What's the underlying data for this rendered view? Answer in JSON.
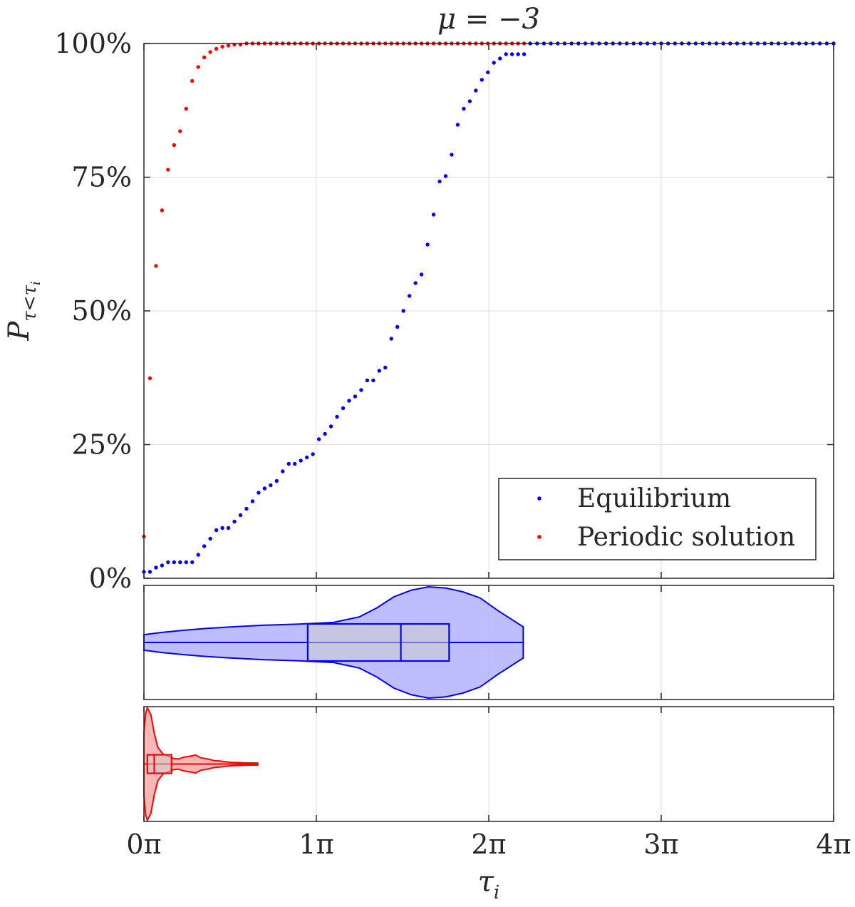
{
  "chart_data": {
    "type": "scatter",
    "title": "μ = −3",
    "xlabel": "τ",
    "xlabel_sub": "i",
    "ylabel": "P",
    "ylabel_sub": "τ<τ",
    "ylabel_sub_sub": "i",
    "x_unit": "π",
    "xlim": [
      0,
      4
    ],
    "x_ticks": [
      0,
      1,
      2,
      3,
      4
    ],
    "x_tick_labels": [
      "0π",
      "1π",
      "2π",
      "3π",
      "4π"
    ],
    "ylim": [
      0,
      100
    ],
    "y_ticks": [
      0,
      25,
      50,
      75,
      100
    ],
    "y_tick_labels": [
      "0%",
      "25%",
      "50%",
      "75%",
      "100%"
    ],
    "grid": true,
    "legend_position": "bottom-right",
    "series": [
      {
        "name": "Equilibrium",
        "color": "#0000ff",
        "x": [
          0,
          0.035,
          0.07,
          0.105,
          0.14,
          0.175,
          0.21,
          0.245,
          0.28,
          0.315,
          0.35,
          0.385,
          0.42,
          0.455,
          0.49,
          0.525,
          0.56,
          0.595,
          0.63,
          0.665,
          0.7,
          0.735,
          0.77,
          0.805,
          0.84,
          0.875,
          0.91,
          0.945,
          0.98,
          1.015,
          1.05,
          1.085,
          1.12,
          1.155,
          1.19,
          1.225,
          1.26,
          1.295,
          1.33,
          1.365,
          1.4,
          1.435,
          1.47,
          1.505,
          1.54,
          1.575,
          1.61,
          1.645,
          1.68,
          1.715,
          1.75,
          1.785,
          1.82,
          1.855,
          1.89,
          1.925,
          1.96,
          1.995,
          2.03,
          2.065,
          2.1,
          2.135,
          2.17,
          2.205,
          2.24,
          2.28,
          2.32,
          2.36,
          2.4,
          2.44,
          2.48,
          2.52,
          2.56,
          2.6,
          2.64,
          2.68,
          2.72,
          2.76,
          2.8,
          2.84,
          2.88,
          2.92,
          2.96,
          3.0,
          3.04,
          3.08,
          3.12,
          3.16,
          3.2,
          3.24,
          3.28,
          3.32,
          3.36,
          3.4,
          3.44,
          3.48,
          3.52,
          3.56,
          3.6,
          3.64,
          3.68,
          3.72,
          3.76,
          3.8,
          3.84,
          3.88,
          3.92,
          3.96,
          4.0
        ],
        "y": [
          1.2,
          1.2,
          2.0,
          2.4,
          3.0,
          3.0,
          3.0,
          3.0,
          3.0,
          4.4,
          6.0,
          7.4,
          9.0,
          9.4,
          9.4,
          10.6,
          11.8,
          13.0,
          14.4,
          16.0,
          16.8,
          17.4,
          18.2,
          20.0,
          21.4,
          21.4,
          22.0,
          22.6,
          23.2,
          26.0,
          27.0,
          28.4,
          30.2,
          31.8,
          33.2,
          34.0,
          35.2,
          37.0,
          37.0,
          38.8,
          39.4,
          44.8,
          47.0,
          50.0,
          52.8,
          55.2,
          56.8,
          62.4,
          68.0,
          74.2,
          75.2,
          79.2,
          84.8,
          87.8,
          89.2,
          91.2,
          93.2,
          94.6,
          96.4,
          97.2,
          98.0,
          98.0,
          98.0,
          98.0,
          100,
          100,
          100,
          100,
          100,
          100,
          100,
          100,
          100,
          100,
          100,
          100,
          100,
          100,
          100,
          100,
          100,
          100,
          100,
          100,
          100,
          100,
          100,
          100,
          100,
          100,
          100,
          100,
          100,
          100,
          100,
          100,
          100,
          100,
          100,
          100,
          100,
          100,
          100,
          100,
          100,
          100,
          100,
          100,
          100
        ]
      },
      {
        "name": "Periodic solution",
        "color": "#ff0000",
        "x": [
          0,
          0.035,
          0.07,
          0.105,
          0.14,
          0.175,
          0.21,
          0.245,
          0.28,
          0.315,
          0.35,
          0.385,
          0.42,
          0.455,
          0.49,
          0.525,
          0.56,
          0.595,
          0.63,
          0.665,
          0.7,
          0.735,
          0.77,
          0.805,
          0.84,
          0.875,
          0.91,
          0.945,
          0.98,
          1.015,
          1.05,
          1.085,
          1.12,
          1.155,
          1.19,
          1.225,
          1.26,
          1.295,
          1.33,
          1.365,
          1.4,
          1.435,
          1.47,
          1.505,
          1.54,
          1.575,
          1.61,
          1.645,
          1.68,
          1.715,
          1.75,
          1.785,
          1.82,
          1.855,
          1.89,
          1.925,
          1.96,
          1.995,
          2.03,
          2.065,
          2.1,
          2.135,
          2.17,
          2.205
        ],
        "y": [
          7.8,
          37.4,
          58.4,
          68.8,
          76.4,
          81.0,
          83.6,
          87.8,
          93.0,
          95.6,
          97.4,
          98.4,
          99.0,
          99.4,
          99.6,
          99.8,
          99.8,
          100,
          100,
          100,
          100,
          100,
          100,
          100,
          100,
          100,
          100,
          100,
          100,
          100,
          100,
          100,
          100,
          100,
          100,
          100,
          100,
          100,
          100,
          100,
          100,
          100,
          100,
          100,
          100,
          100,
          100,
          100,
          100,
          100,
          100,
          100,
          100,
          100,
          100,
          100,
          100,
          100,
          100,
          100,
          100,
          100,
          100,
          100
        ]
      }
    ],
    "violins": [
      {
        "name": "Equilibrium",
        "color": "#0000ff",
        "fill": "#b3b3ff",
        "range": [
          0,
          2.2
        ],
        "q1": 0.95,
        "median": 1.49,
        "q3": 1.77,
        "profile": [
          [
            0,
            0.14
          ],
          [
            0.1,
            0.18
          ],
          [
            0.2,
            0.21
          ],
          [
            0.35,
            0.25
          ],
          [
            0.5,
            0.28
          ],
          [
            0.7,
            0.31
          ],
          [
            0.9,
            0.33
          ],
          [
            1.1,
            0.36
          ],
          [
            1.25,
            0.46
          ],
          [
            1.35,
            0.62
          ],
          [
            1.45,
            0.82
          ],
          [
            1.55,
            0.94
          ],
          [
            1.65,
            1.0
          ],
          [
            1.75,
            0.98
          ],
          [
            1.85,
            0.91
          ],
          [
            1.95,
            0.8
          ],
          [
            2.05,
            0.58
          ],
          [
            2.2,
            0.28
          ]
        ]
      },
      {
        "name": "Periodic solution",
        "color": "#ff0000",
        "fill": "#f4aaaa",
        "range": [
          0,
          0.66
        ],
        "q1": 0.02,
        "median": 0.06,
        "q3": 0.16,
        "profile": [
          [
            0,
            0.55
          ],
          [
            0.01,
            0.9
          ],
          [
            0.02,
            1.0
          ],
          [
            0.04,
            0.88
          ],
          [
            0.06,
            0.55
          ],
          [
            0.08,
            0.3
          ],
          [
            0.11,
            0.18
          ],
          [
            0.14,
            0.14
          ],
          [
            0.17,
            0.1
          ],
          [
            0.2,
            0.09
          ],
          [
            0.23,
            0.12
          ],
          [
            0.27,
            0.14
          ],
          [
            0.3,
            0.16
          ],
          [
            0.33,
            0.11
          ],
          [
            0.37,
            0.09
          ],
          [
            0.41,
            0.06
          ],
          [
            0.45,
            0.05
          ],
          [
            0.5,
            0.03
          ],
          [
            0.55,
            0.025
          ],
          [
            0.6,
            0.02
          ],
          [
            0.66,
            0.018
          ]
        ]
      }
    ]
  }
}
